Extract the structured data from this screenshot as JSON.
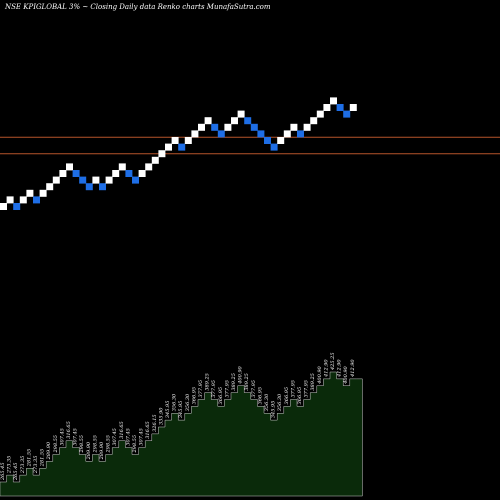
{
  "chart_data": {
    "type": "renko",
    "title": "NSE KPIGLOBAL 3% ~ Closing Daily data Renko charts MunafaSutra.com",
    "colors": {
      "background": "#000000",
      "up_brick": "#ffffff",
      "down_brick": "#1e6ee6",
      "horizontal_line": "#b5542a",
      "volume_fill": "#0a2a0a",
      "volume_stroke": "#cccccc"
    },
    "bricks": [
      {
        "level": 0,
        "dir": "up"
      },
      {
        "level": 1,
        "dir": "up"
      },
      {
        "level": 0,
        "dir": "down"
      },
      {
        "level": 1,
        "dir": "up"
      },
      {
        "level": 2,
        "dir": "up"
      },
      {
        "level": 1,
        "dir": "down"
      },
      {
        "level": 2,
        "dir": "up"
      },
      {
        "level": 3,
        "dir": "up"
      },
      {
        "level": 4,
        "dir": "up"
      },
      {
        "level": 5,
        "dir": "up"
      },
      {
        "level": 6,
        "dir": "up"
      },
      {
        "level": 5,
        "dir": "down"
      },
      {
        "level": 4,
        "dir": "down"
      },
      {
        "level": 3,
        "dir": "down"
      },
      {
        "level": 4,
        "dir": "up"
      },
      {
        "level": 3,
        "dir": "down"
      },
      {
        "level": 4,
        "dir": "up"
      },
      {
        "level": 5,
        "dir": "up"
      },
      {
        "level": 6,
        "dir": "up"
      },
      {
        "level": 5,
        "dir": "down"
      },
      {
        "level": 4,
        "dir": "down"
      },
      {
        "level": 5,
        "dir": "up"
      },
      {
        "level": 6,
        "dir": "up"
      },
      {
        "level": 7,
        "dir": "up"
      },
      {
        "level": 8,
        "dir": "up"
      },
      {
        "level": 9,
        "dir": "up"
      },
      {
        "level": 10,
        "dir": "up"
      },
      {
        "level": 9,
        "dir": "down"
      },
      {
        "level": 10,
        "dir": "up"
      },
      {
        "level": 11,
        "dir": "up"
      },
      {
        "level": 12,
        "dir": "up"
      },
      {
        "level": 13,
        "dir": "up"
      },
      {
        "level": 12,
        "dir": "down"
      },
      {
        "level": 11,
        "dir": "down"
      },
      {
        "level": 12,
        "dir": "up"
      },
      {
        "level": 13,
        "dir": "up"
      },
      {
        "level": 14,
        "dir": "up"
      },
      {
        "level": 13,
        "dir": "down"
      },
      {
        "level": 12,
        "dir": "down"
      },
      {
        "level": 11,
        "dir": "down"
      },
      {
        "level": 10,
        "dir": "down"
      },
      {
        "level": 9,
        "dir": "down"
      },
      {
        "level": 10,
        "dir": "up"
      },
      {
        "level": 11,
        "dir": "up"
      },
      {
        "level": 12,
        "dir": "up"
      },
      {
        "level": 11,
        "dir": "down"
      },
      {
        "level": 12,
        "dir": "up"
      },
      {
        "level": 13,
        "dir": "up"
      },
      {
        "level": 14,
        "dir": "up"
      },
      {
        "level": 15,
        "dir": "up"
      },
      {
        "level": 16,
        "dir": "up"
      },
      {
        "level": 15,
        "dir": "down"
      },
      {
        "level": 14,
        "dir": "down"
      },
      {
        "level": 15,
        "dir": "up"
      }
    ],
    "horizontal_lines_level": [
      10.5,
      8.0
    ],
    "price_labels": [
      "265.45",
      "273.35",
      "265.45",
      "273.35",
      "281.55",
      "273.35",
      "281.55",
      "289.90",
      "298.55",
      "307.45",
      "316.65",
      "307.45",
      "298.55",
      "289.90",
      "298.55",
      "289.90",
      "298.55",
      "307.45",
      "316.65",
      "307.45",
      "298.55",
      "307.45",
      "316.65",
      "326.15",
      "335.90",
      "345.95",
      "356.30",
      "345.95",
      "356.30",
      "366.95",
      "377.95",
      "389.25",
      "377.95",
      "366.95",
      "377.95",
      "389.25",
      "400.90",
      "389.25",
      "377.95",
      "366.95",
      "356.30",
      "345.95",
      "356.30",
      "366.95",
      "377.95",
      "366.95",
      "377.95",
      "389.25",
      "400.90",
      "412.90",
      "425.25",
      "412.90",
      "400.90",
      "412.90"
    ]
  }
}
